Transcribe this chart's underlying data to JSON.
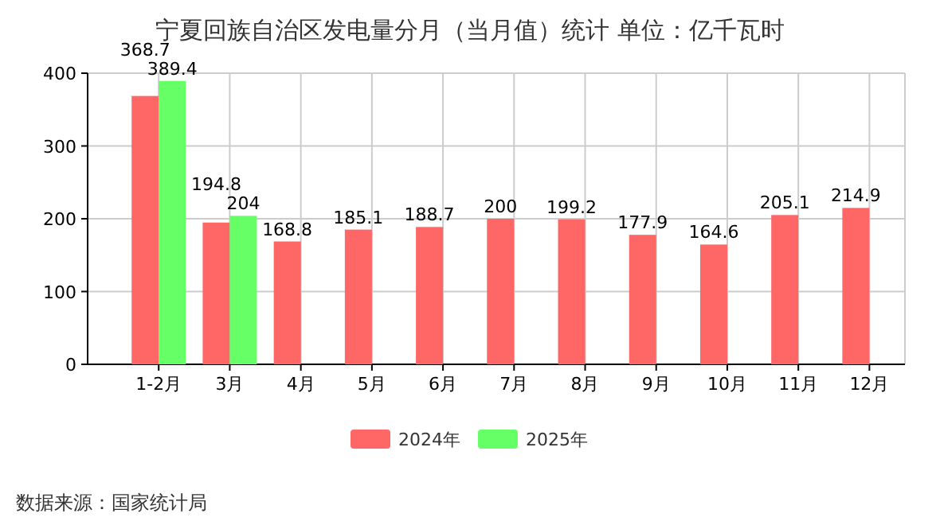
{
  "chart_data": {
    "type": "bar",
    "title": "宁夏回族自治区发电量分月（当月值）统计 单位：亿千瓦时",
    "categories": [
      "1-2月",
      "3月",
      "4月",
      "5月",
      "6月",
      "7月",
      "8月",
      "9月",
      "10月",
      "11月",
      "12月"
    ],
    "series": [
      {
        "name": "2024年",
        "color": "#ff6666",
        "values": [
          368.7,
          194.8,
          168.8,
          185.1,
          188.7,
          200,
          199.2,
          177.9,
          164.6,
          205.1,
          214.9
        ]
      },
      {
        "name": "2025年",
        "color": "#66ff66",
        "values": [
          389.4,
          204,
          null,
          null,
          null,
          null,
          null,
          null,
          null,
          null,
          null
        ]
      }
    ],
    "ylim": [
      0,
      400
    ],
    "yticks": [
      0,
      100,
      200,
      300,
      400
    ],
    "grid": true,
    "legend": "bottom",
    "data_labels": true,
    "annotations": [
      "数据来源：国家统计局"
    ]
  }
}
